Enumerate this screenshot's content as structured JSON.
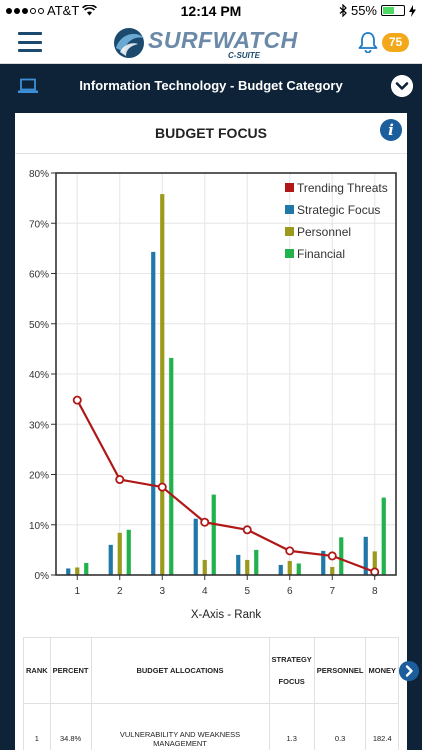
{
  "status_bar": {
    "carrier": "AT&T",
    "time": "12:14 PM",
    "battery": "55%",
    "battery_level": 0.55
  },
  "header": {
    "logo_text": "SURFWATCH",
    "logo_sub": "C-SUITE",
    "notification_count": "75"
  },
  "category": {
    "title": "Information Technology - Budget Category"
  },
  "card": {
    "title": "BUDGET FOCUS"
  },
  "chart_data": {
    "type": "bar",
    "title": "",
    "xlabel": "X-Axis - Rank",
    "ylabel": "",
    "categories": [
      "1",
      "2",
      "3",
      "4",
      "5",
      "6",
      "7",
      "8"
    ],
    "yticks": [
      "0%",
      "10%",
      "20%",
      "30%",
      "40%",
      "50%",
      "60%",
      "70%",
      "80%"
    ],
    "ylim": [
      0,
      80
    ],
    "grid": true,
    "legend_position": "top-right",
    "series": [
      {
        "name": "Trending Threats",
        "type": "line",
        "color": "#b01818",
        "values": [
          34.8,
          19.0,
          17.5,
          10.5,
          9.0,
          4.8,
          3.8,
          0.6
        ]
      },
      {
        "name": "Strategic Focus",
        "type": "bar",
        "color": "#1f78a8",
        "values": [
          1.3,
          6.0,
          64.3,
          11.2,
          4.0,
          2.0,
          4.8,
          7.6
        ]
      },
      {
        "name": "Personnel",
        "type": "bar",
        "color": "#9c9a1c",
        "values": [
          1.5,
          8.4,
          75.8,
          3.0,
          3.0,
          2.8,
          1.6,
          4.7
        ]
      },
      {
        "name": "Financial",
        "type": "bar",
        "color": "#22b24c",
        "values": [
          2.4,
          9.0,
          43.2,
          16.0,
          5.0,
          2.3,
          7.5,
          15.4
        ]
      }
    ]
  },
  "table": {
    "headers": {
      "rank": "RANK",
      "percent": "PERCENT",
      "allocations": "BUDGET ALLOCATIONS",
      "strategy_line1": "STRATEGY",
      "strategy_line2": "FOCUS",
      "personnel": "PERSONNEL",
      "money": "MONEY"
    },
    "rows": [
      {
        "rank": "1",
        "percent": "34.8%",
        "allocation": "VULNERABILITY AND WEAKNESS MANAGEMENT",
        "strategy": "1.3",
        "personnel": "0.3",
        "money": "182.4"
      }
    ]
  }
}
